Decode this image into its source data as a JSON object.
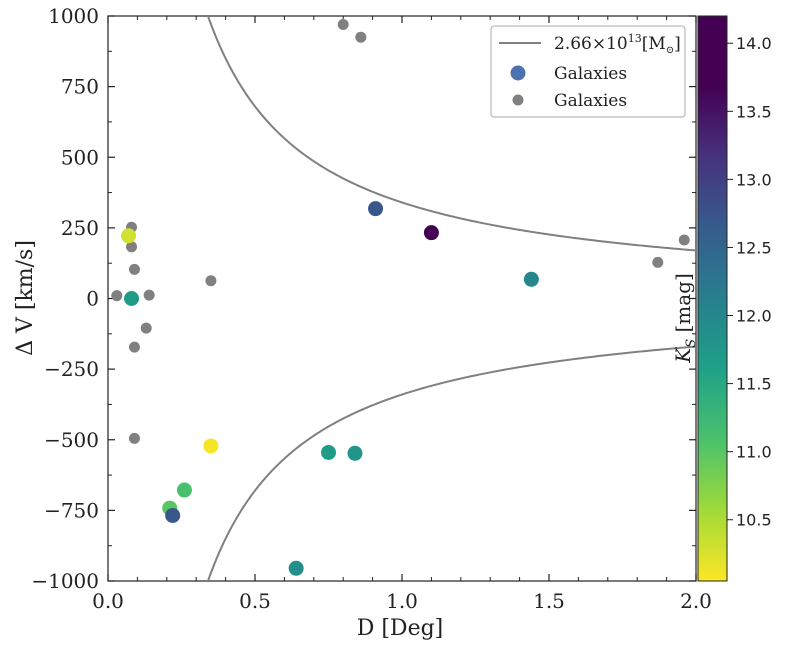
{
  "chart_data": {
    "type": "scatter",
    "xlabel": "D [Deg]",
    "ylabel": "Δ V [km/s]",
    "xlim": [
      0.0,
      2.0
    ],
    "ylim": [
      -1000,
      1000
    ],
    "x_ticks": [
      0.0,
      0.5,
      1.0,
      1.5,
      2.0
    ],
    "x_tick_labels": [
      "0.0",
      "0.5",
      "1.0",
      "1.5",
      "2.0"
    ],
    "y_ticks": [
      -1000,
      -750,
      -500,
      -250,
      0,
      250,
      500,
      750,
      1000
    ],
    "y_tick_labels": [
      "−1000",
      "−750",
      "−500",
      "−250",
      "0",
      "250",
      "500",
      "750",
      "1000"
    ],
    "grid": false,
    "legend_position": "top-right",
    "legend": {
      "curve_label_base": "2.66×10",
      "curve_label_exp": "13",
      "curve_label_unit": "[M",
      "curve_label_sun": "⊙",
      "curve_label_close": "]",
      "series_colored_label": "Galaxies",
      "series_gray_label": "Galaxies"
    },
    "colors": {
      "curve": "#808080",
      "gray_points": "#808080",
      "legend_colored_marker": "#4c72b0"
    },
    "curve": {
      "name": "2.66×10^13 [M⊙]",
      "k": 340,
      "description": "ΔV = ± k / D"
    },
    "colorbar": {
      "label_main": "K",
      "label_sub": "S",
      "label_unit": " [mag]",
      "min": 10.05,
      "max": 14.2,
      "ticks": [
        10.5,
        11.0,
        11.5,
        12.0,
        12.5,
        13.0,
        13.5,
        14.0
      ],
      "tick_labels": [
        "10.5",
        "11.0",
        "11.5",
        "12.0",
        "12.5",
        "13.0",
        "13.5",
        "14.0"
      ],
      "colormap": "viridis_reversed"
    },
    "series": [
      {
        "name": "Galaxies (colored by Ks)",
        "points": [
          {
            "x": 0.07,
            "y": 222,
            "k": 10.3
          },
          {
            "x": 0.08,
            "y": 0,
            "k": 11.7
          },
          {
            "x": 0.21,
            "y": -742,
            "k": 11.0
          },
          {
            "x": 0.22,
            "y": -768,
            "k": 12.7
          },
          {
            "x": 0.26,
            "y": -678,
            "k": 11.1
          },
          {
            "x": 0.35,
            "y": -522,
            "k": 10.1
          },
          {
            "x": 0.64,
            "y": -955,
            "k": 11.9
          },
          {
            "x": 0.75,
            "y": -545,
            "k": 11.7
          },
          {
            "x": 0.84,
            "y": -548,
            "k": 11.8
          },
          {
            "x": 0.91,
            "y": 318,
            "k": 12.7
          },
          {
            "x": 1.1,
            "y": 233,
            "k": 14.2
          },
          {
            "x": 1.44,
            "y": 68,
            "k": 12.0
          }
        ]
      },
      {
        "name": "Galaxies (gray)",
        "points": [
          {
            "x": 0.03,
            "y": 10
          },
          {
            "x": 0.08,
            "y": 252
          },
          {
            "x": 0.08,
            "y": 183
          },
          {
            "x": 0.09,
            "y": 103
          },
          {
            "x": 0.09,
            "y": -172
          },
          {
            "x": 0.09,
            "y": -495
          },
          {
            "x": 0.13,
            "y": -105
          },
          {
            "x": 0.14,
            "y": 12
          },
          {
            "x": 0.35,
            "y": 63
          },
          {
            "x": 0.8,
            "y": 970
          },
          {
            "x": 0.86,
            "y": 925
          },
          {
            "x": 1.87,
            "y": 128
          },
          {
            "x": 1.96,
            "y": 207
          }
        ]
      }
    ]
  }
}
